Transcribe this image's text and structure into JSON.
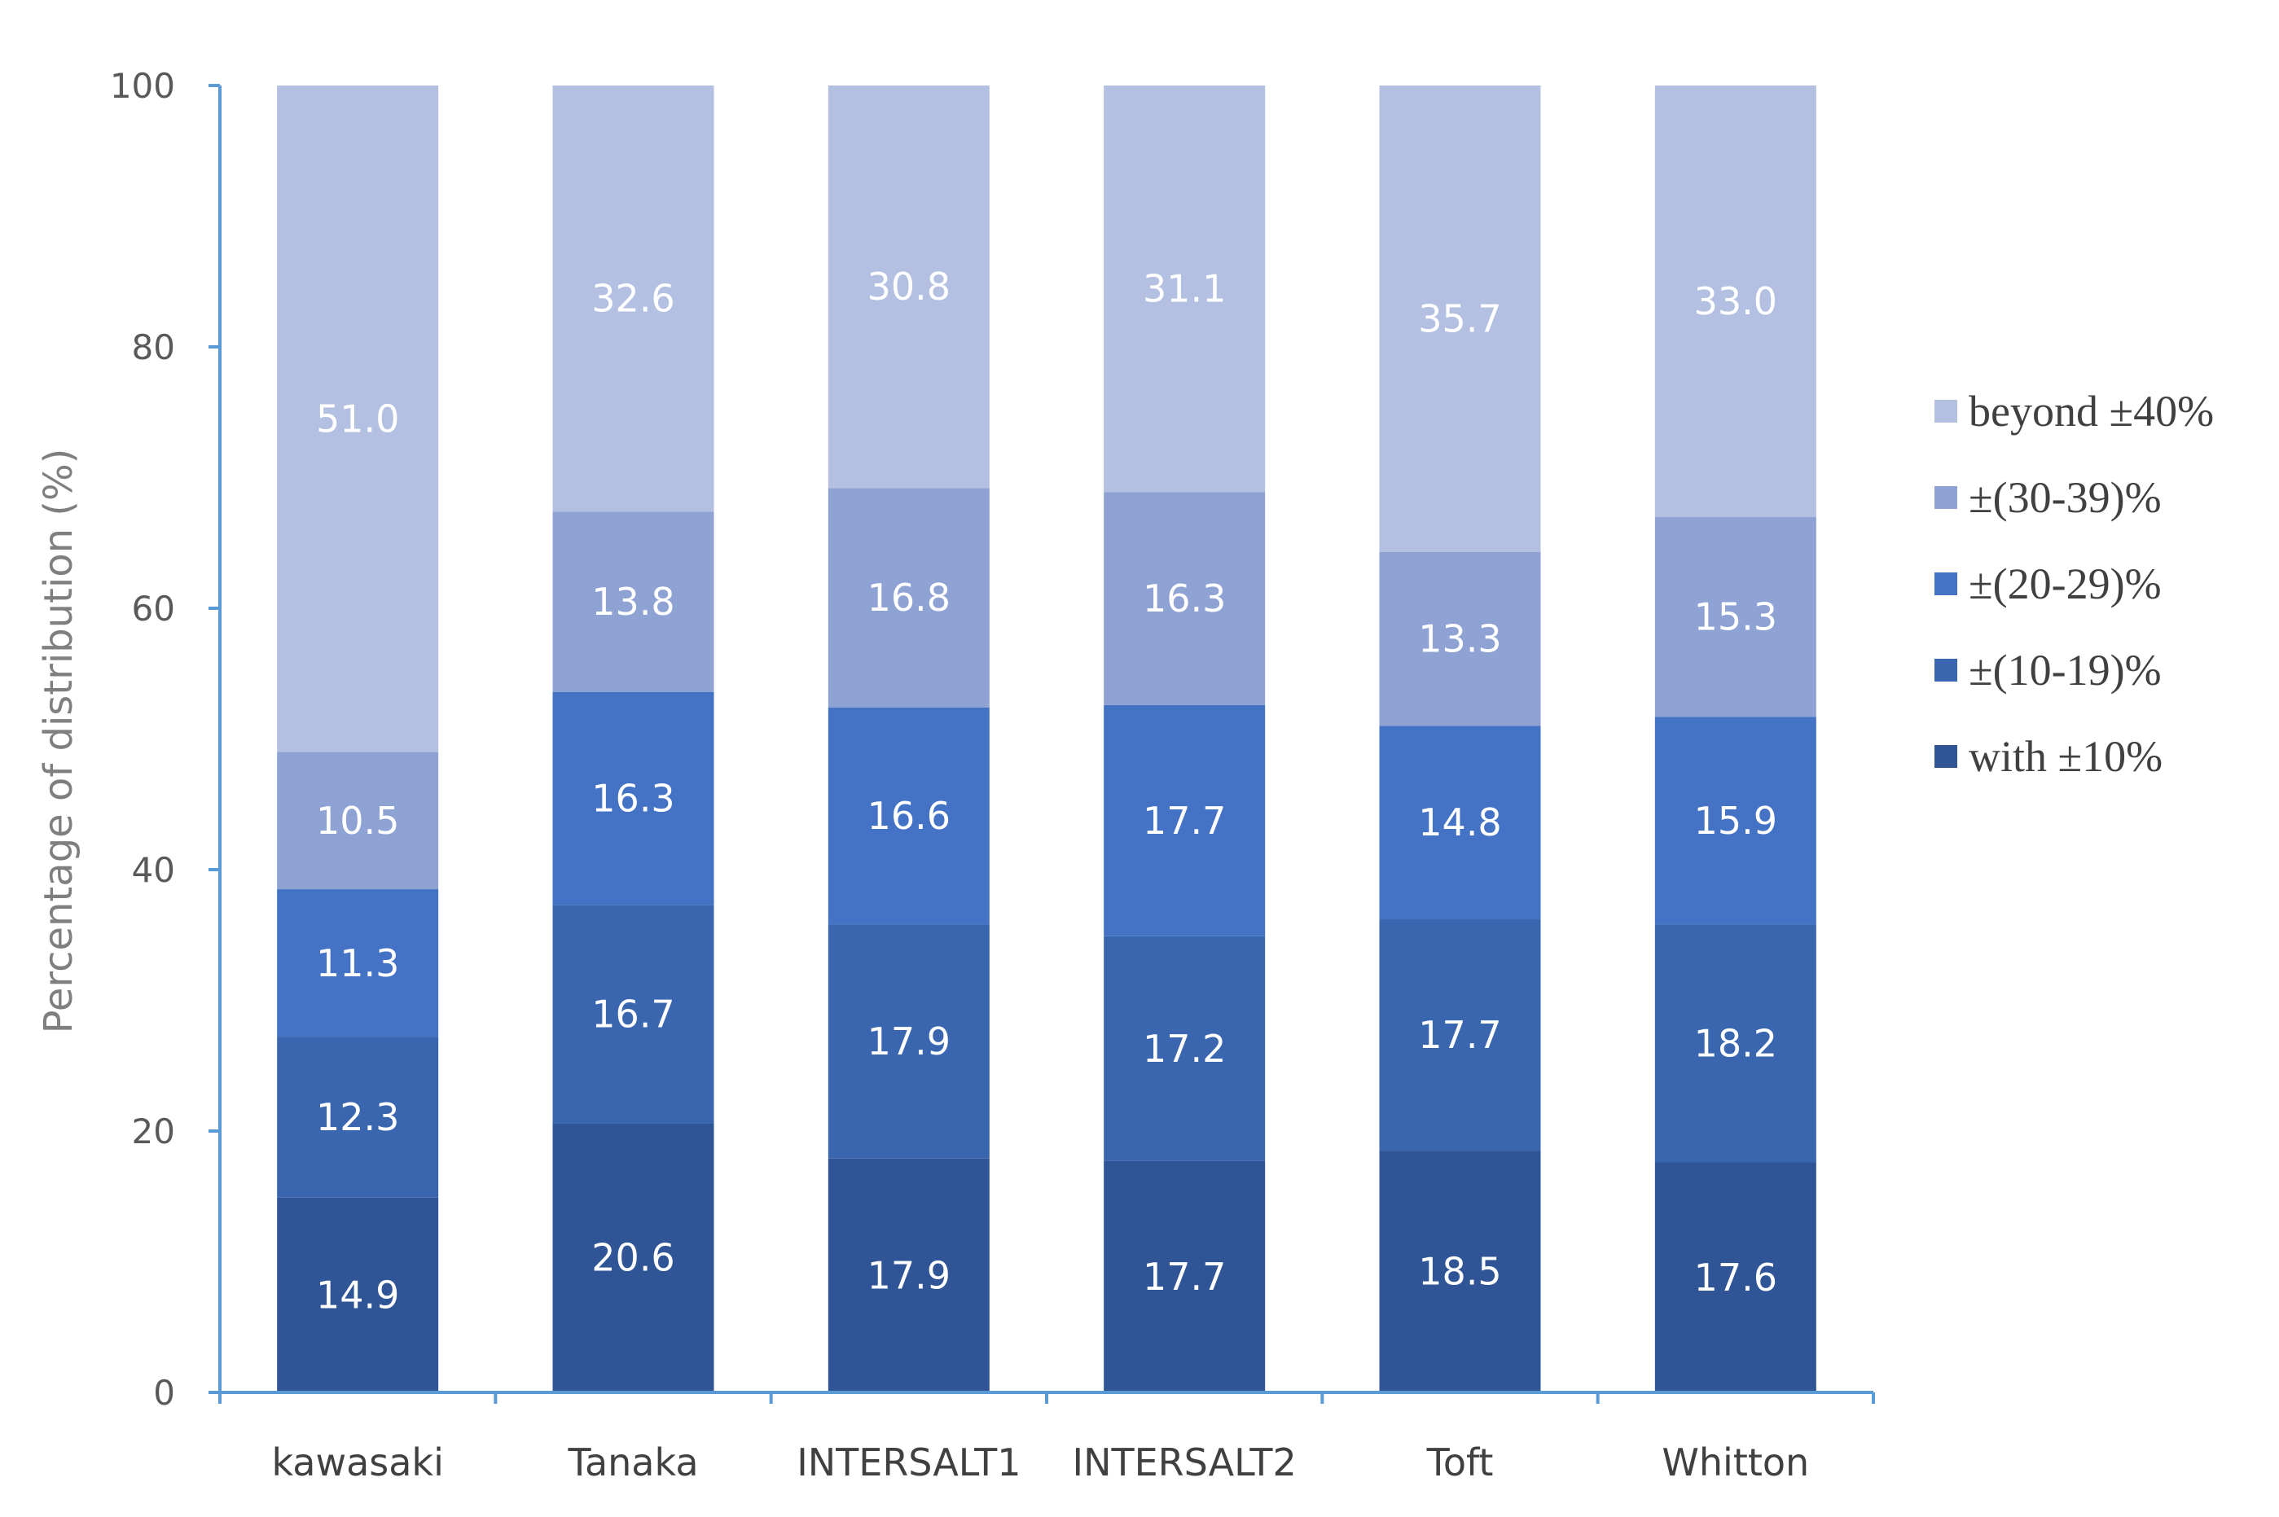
{
  "chart_data": {
    "type": "bar",
    "stacked": true,
    "categories": [
      "kawasaki",
      "Tanaka",
      "INTERSALT1",
      "INTERSALT2",
      "Toft",
      "Whitton"
    ],
    "series": [
      {
        "name": "with ±10%",
        "color": "#2f5597",
        "values": [
          14.9,
          20.6,
          17.9,
          17.7,
          18.5,
          17.6
        ]
      },
      {
        "name": "±(10-19)%",
        "color": "#3a66b0",
        "values": [
          12.3,
          16.7,
          17.9,
          17.2,
          17.7,
          18.2
        ]
      },
      {
        "name": "±(20-29)%",
        "color": "#4472c4",
        "values": [
          11.3,
          16.3,
          16.6,
          17.7,
          14.8,
          15.9
        ]
      },
      {
        "name": "±(30-39)%",
        "color": "#8fa2d4",
        "values": [
          10.5,
          13.8,
          16.8,
          16.3,
          13.3,
          15.3
        ]
      },
      {
        "name": "beyond ±40%",
        "color": "#b4c0e2",
        "values": [
          51.0,
          32.6,
          30.8,
          31.1,
          35.7,
          33.0
        ]
      }
    ],
    "data_labels": [
      [
        "14.9",
        "20.6",
        "17.9",
        "17.7",
        "18.5",
        "17.6"
      ],
      [
        "12.3",
        "16.7",
        "17.9",
        "17.2",
        "17.7",
        "18.2"
      ],
      [
        "11.3",
        "16.3",
        "16.6",
        "17.7",
        "14.8",
        "15.9"
      ],
      [
        "10.5",
        "13.8",
        "16.8",
        "16.3",
        "13.3",
        "15.3"
      ],
      [
        "51.0",
        "32.6",
        "30.8",
        "31.1",
        "35.7",
        "33.0"
      ]
    ],
    "title": "",
    "xlabel": "",
    "ylabel": "Percentage of distribution (%)",
    "ylim": [
      0,
      100
    ],
    "yticks": [
      0,
      20,
      40,
      60,
      80,
      100
    ],
    "ytick_labels": [
      "0",
      "20",
      "40",
      "60",
      "80",
      "100"
    ],
    "grid": false,
    "legend_position": "right",
    "legend_order": [
      "beyond ±40%",
      "±(30-39)%",
      "±(20-29)%",
      "±(10-19)%",
      "with ±10%"
    ],
    "axis_color": "#5b9bd5"
  }
}
